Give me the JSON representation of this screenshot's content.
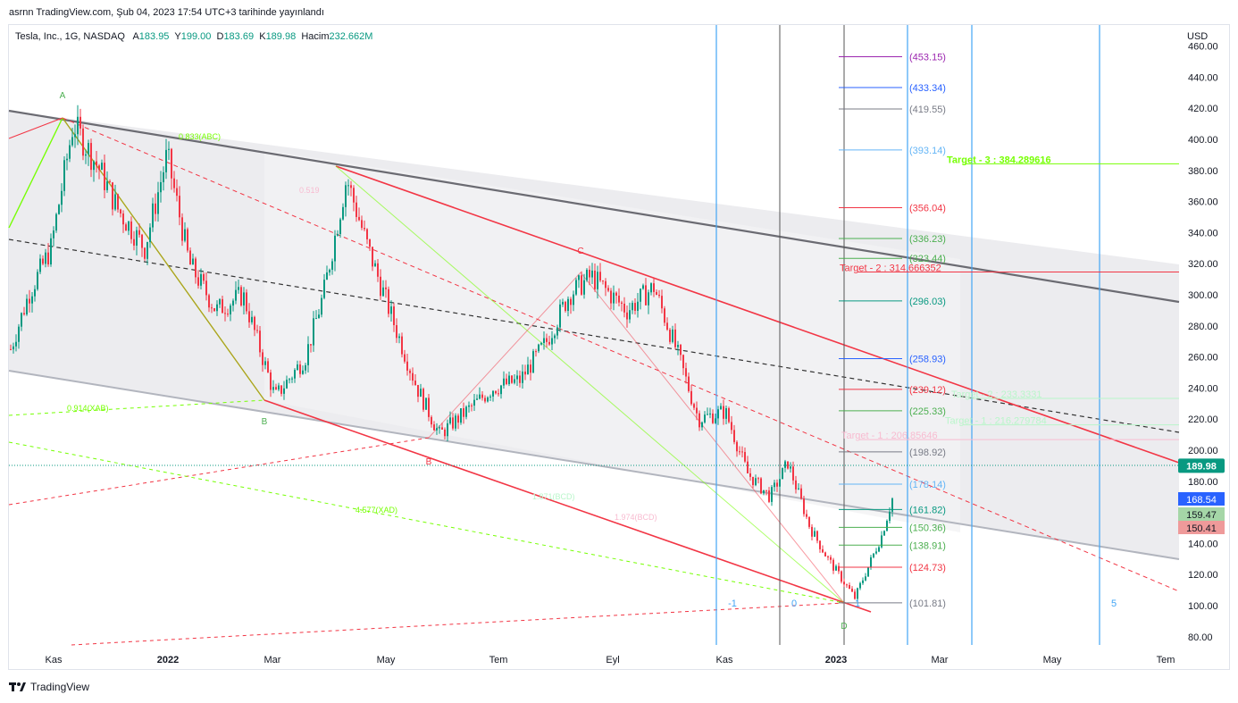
{
  "header": {
    "published_line": "asrnn TradingView.com, Şub 04, 2023 17:54 UTC+3 tarihinde yayınlandı"
  },
  "legend": {
    "symbol": "Tesla, Inc., 1G, NASDAQ",
    "open_label": "A",
    "open": "183.95",
    "high_label": "Y",
    "high": "199.00",
    "low_label": "D",
    "low": "183.69",
    "close_label": "K",
    "close": "189.98",
    "volume_label": "Hacim",
    "volume": "232.662M"
  },
  "footer": {
    "brand": "TradingView"
  },
  "chart_data": {
    "type": "candlestick",
    "currency_label": "USD",
    "y_ticks": [
      "80.00",
      "100.00",
      "120.00",
      "140.00",
      "160.00",
      "180.00",
      "200.00",
      "220.00",
      "240.00",
      "260.00",
      "280.00",
      "300.00",
      "320.00",
      "340.00",
      "360.00",
      "380.00",
      "400.00",
      "420.00",
      "440.00",
      "460.00"
    ],
    "x_ticks": [
      "Kas",
      "2022",
      "Mar",
      "May",
      "Tem",
      "Eyl",
      "Kas",
      "2023",
      "Mar",
      "May",
      "Tem"
    ],
    "last_price": "189.98",
    "price_tags": [
      {
        "value": "168.54",
        "color": "#2962ff"
      },
      {
        "value": "159.47",
        "color": "#a5d6a7"
      },
      {
        "value": "150.41",
        "color": "#ef9a9a"
      }
    ],
    "fib_levels": [
      {
        "label": "(453.15)",
        "value": 453.15,
        "color": "#9c27b0"
      },
      {
        "label": "(433.34)",
        "value": 433.34,
        "color": "#2962ff"
      },
      {
        "label": "(419.55)",
        "value": 419.55,
        "color": "#787b86"
      },
      {
        "label": "(393.14)",
        "value": 393.14,
        "color": "#64b5f6"
      },
      {
        "label": "(356.04)",
        "value": 356.04,
        "color": "#f23645"
      },
      {
        "label": "(336.23)",
        "value": 336.23,
        "color": "#4caf50"
      },
      {
        "label": "(323.44)",
        "value": 323.44,
        "color": "#4caf50"
      },
      {
        "label": "(296.03)",
        "value": 296.03,
        "color": "#089981"
      },
      {
        "label": "(258.93)",
        "value": 258.93,
        "color": "#2962ff"
      },
      {
        "label": "(239.12)",
        "value": 239.12,
        "color": "#f23645"
      },
      {
        "label": "(225.33)",
        "value": 225.33,
        "color": "#4caf50"
      },
      {
        "label": "(198.92)",
        "value": 198.92,
        "color": "#787b86"
      },
      {
        "label": "(178.14)",
        "value": 178.14,
        "color": "#64b5f6"
      },
      {
        "label": "(161.82)",
        "value": 161.82,
        "color": "#089981"
      },
      {
        "label": "(150.36)",
        "value": 150.36,
        "color": "#4caf50"
      },
      {
        "label": "(138.91)",
        "value": 138.91,
        "color": "#4caf50"
      },
      {
        "label": "(124.73)",
        "value": 124.73,
        "color": "#f23645"
      },
      {
        "label": "(101.81)",
        "value": 101.81,
        "color": "#787b86"
      }
    ],
    "targets": [
      {
        "label": "Target - 3 : 384.289616",
        "value": 384.29,
        "color": "#76ff03"
      },
      {
        "label": "Target - 2 : 314.666352",
        "value": 314.67,
        "color": "#f23645"
      },
      {
        "label": "Target - 2 : 233.3331",
        "value": 233.33,
        "color": "#b9f6ca"
      },
      {
        "label": "Target - 1 : 216.279784",
        "value": 216.28,
        "color": "#b9f6ca"
      },
      {
        "label": "Target - 1 : 206.85646",
        "value": 206.86,
        "color": "#f8bbd0"
      }
    ],
    "pattern_labels": [
      "A",
      "B",
      "C",
      "D",
      "B"
    ],
    "ratio_labels": [
      "0.833(ABC)",
      "0.914(XAB)",
      "4.577(XAD)",
      "1.871(BCD)",
      "1.974(BCD)",
      "0.519"
    ],
    "cycle_labels": [
      "-1",
      "0",
      "1",
      "5"
    ],
    "colors": {
      "up": "#089981",
      "down": "#f23645",
      "channel": "#d1d4dc",
      "last": "#089981"
    }
  }
}
